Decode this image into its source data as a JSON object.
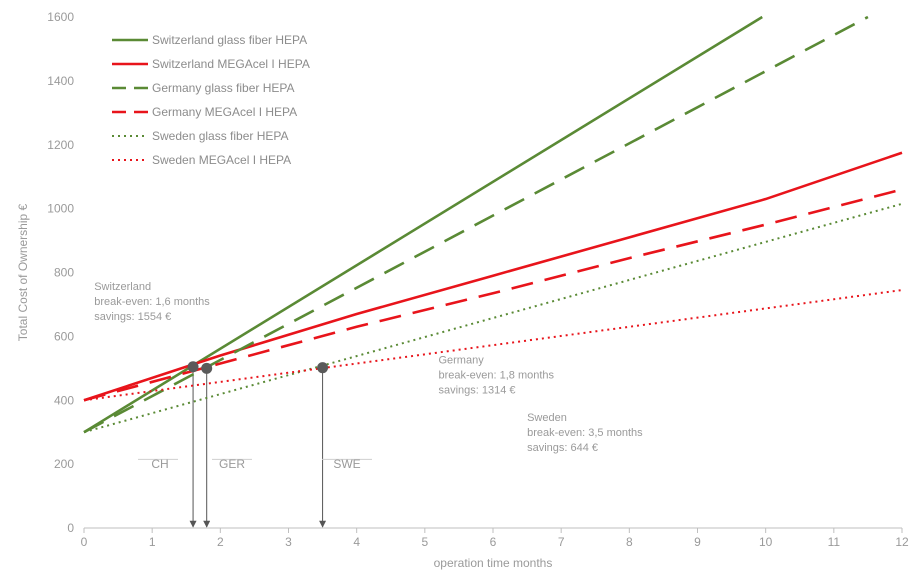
{
  "chart_data": {
    "type": "line",
    "title": "",
    "xlabel": "operation time months",
    "ylabel": "Total Cost of Ownership €",
    "xlim": [
      0,
      12
    ],
    "ylim": [
      0,
      1600
    ],
    "x_ticks": [
      0,
      1,
      2,
      3,
      4,
      5,
      6,
      7,
      8,
      9,
      10,
      11,
      12
    ],
    "y_ticks": [
      0,
      200,
      400,
      600,
      800,
      1000,
      1200,
      1400,
      1600
    ],
    "grid": false,
    "legend_position": "top-left",
    "series": [
      {
        "name": "Switzerland glass fiber HEPA",
        "color": "#5a8a35",
        "style": "solid",
        "points": [
          [
            0,
            300
          ],
          [
            9.95,
            1600
          ]
        ]
      },
      {
        "name": "Switzerland MEGAcel I HEPA",
        "color": "#e8141b",
        "style": "solid",
        "points": [
          [
            0,
            400
          ],
          [
            2,
            540
          ],
          [
            4,
            670
          ],
          [
            6,
            790
          ],
          [
            8,
            910
          ],
          [
            10,
            1030
          ],
          [
            12,
            1175
          ]
        ]
      },
      {
        "name": "Germany glass fiber HEPA",
        "color": "#5a8a35",
        "style": "dashed",
        "points": [
          [
            0,
            300
          ],
          [
            11.5,
            1600
          ]
        ]
      },
      {
        "name": "Germany MEGAcel I HEPA",
        "color": "#e8141b",
        "style": "dashed",
        "points": [
          [
            0,
            400
          ],
          [
            2,
            515
          ],
          [
            4,
            630
          ],
          [
            6,
            735
          ],
          [
            8,
            845
          ],
          [
            10,
            950
          ],
          [
            12,
            1060
          ]
        ]
      },
      {
        "name": "Sweden glass fiber HEPA",
        "color": "#5a8a35",
        "style": "dotted",
        "points": [
          [
            0,
            300
          ],
          [
            12,
            1015
          ]
        ]
      },
      {
        "name": "Sweden MEGAcel I HEPA",
        "color": "#e8141b",
        "style": "dotted",
        "points": [
          [
            0,
            400
          ],
          [
            12,
            745
          ]
        ]
      }
    ],
    "break_even_points": [
      {
        "label": "CH",
        "x": 1.6,
        "y": 505
      },
      {
        "label": "GER",
        "x": 1.8,
        "y": 500
      },
      {
        "label": "SWE",
        "x": 3.5,
        "y": 502
      }
    ],
    "annotations": [
      {
        "lines": [
          "Switzerland",
          "break-even: 1,6 months",
          "savings: 1554 €"
        ],
        "x": 0.15,
        "y": 745
      },
      {
        "lines": [
          "Germany",
          "break-even: 1,8 months",
          "savings: 1314 €"
        ],
        "x": 5.2,
        "y": 515
      },
      {
        "lines": [
          "Sweden",
          "break-even: 3,5 months",
          "savings: 644 €"
        ],
        "x": 6.5,
        "y": 335
      }
    ]
  }
}
